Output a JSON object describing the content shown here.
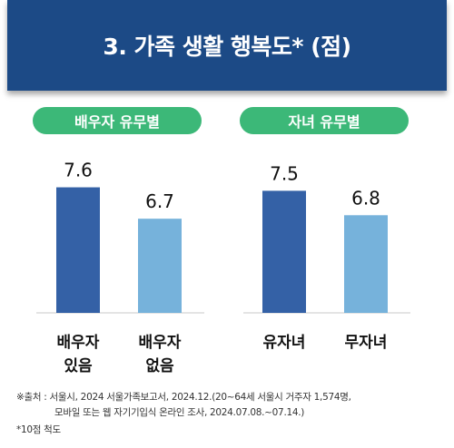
{
  "header": {
    "title": "3. 가족 생활 행복도* (점)"
  },
  "groups": [
    {
      "title": "배우자 유무별"
    },
    {
      "title": "자녀 유무별"
    }
  ],
  "chart_data": {
    "type": "bar",
    "title": "3. 가족 생활 행복도* (점)",
    "groups": [
      {
        "name": "배우자 유무별",
        "categories": [
          [
            "배우자",
            "있음"
          ],
          [
            "배우자",
            "없음"
          ]
        ],
        "values": [
          7.6,
          6.7
        ],
        "colors": [
          "#3461a6",
          "#76b2db"
        ]
      },
      {
        "name": "자녀 유무별",
        "categories": [
          [
            "유자녀"
          ],
          [
            "무자녀"
          ]
        ],
        "values": [
          7.5,
          6.8
        ],
        "colors": [
          "#3461a6",
          "#76b2db"
        ]
      }
    ],
    "ylim": [
      4.0,
      7.9
    ],
    "grid": false,
    "legend": "none"
  },
  "notes": {
    "line1": "※출처 : 서울시, 2024 서울가족보고서, 2024.12.(20~64세 서울시 거주자 1,574명,",
    "line2": "모바일 또는 웹 자기기입식 온라인 조사, 2024.07.08.~07.14.)",
    "line3": "*10점 척도"
  }
}
